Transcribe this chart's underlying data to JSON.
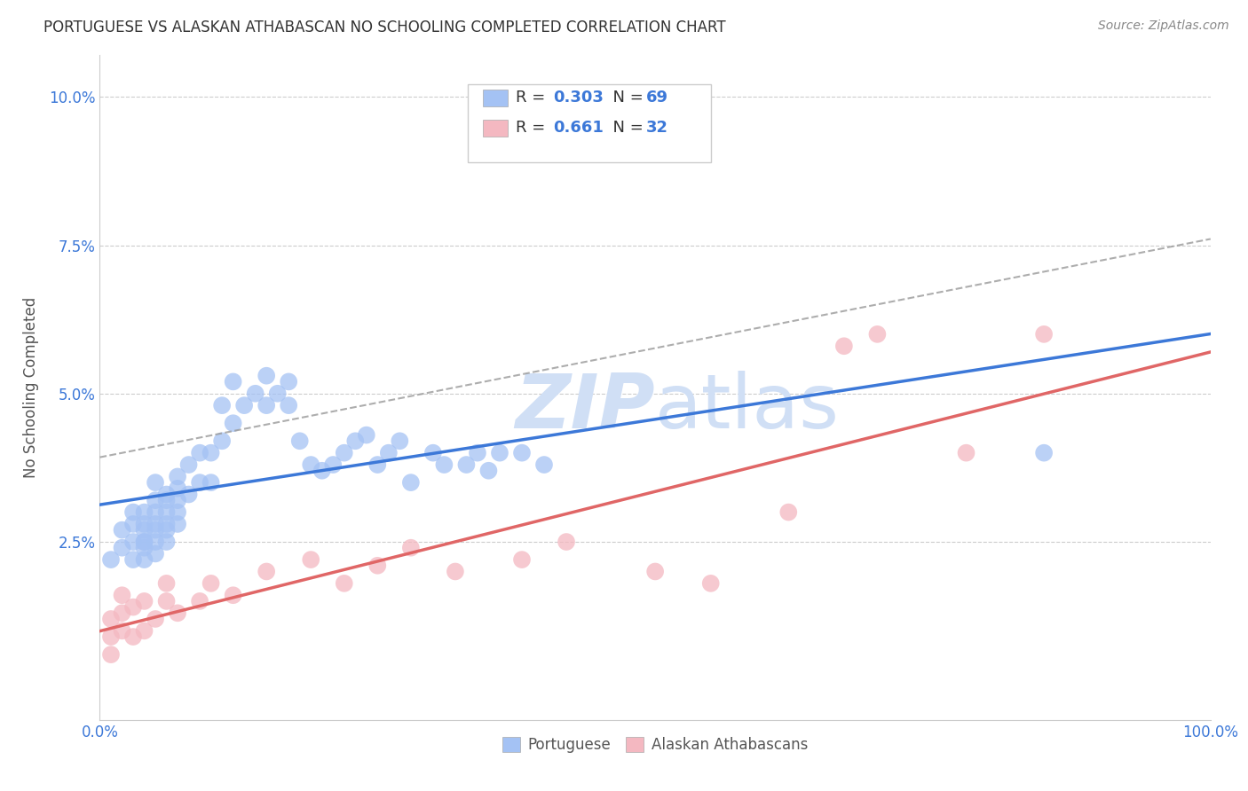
{
  "title": "PORTUGUESE VS ALASKAN ATHABASCAN NO SCHOOLING COMPLETED CORRELATION CHART",
  "source": "Source: ZipAtlas.com",
  "ylabel": "No Schooling Completed",
  "xlim": [
    0.0,
    1.0
  ],
  "ylim": [
    -0.005,
    0.107
  ],
  "xtick_positions": [
    0.0,
    0.25,
    0.5,
    0.75,
    1.0
  ],
  "xtick_labels": [
    "0.0%",
    "",
    "",
    "",
    "100.0%"
  ],
  "ytick_positions": [
    0.025,
    0.05,
    0.075,
    0.1
  ],
  "ytick_labels": [
    "2.5%",
    "5.0%",
    "7.5%",
    "10.0%"
  ],
  "legend1_r": "0.303",
  "legend1_n": "69",
  "legend2_r": "0.661",
  "legend2_n": "32",
  "portuguese_color": "#a4c2f4",
  "athabascan_color": "#f4b8c1",
  "portuguese_line_color": "#3c78d8",
  "athabascan_line_color": "#e06666",
  "legend_text_color": "#3c78d8",
  "watermark_color": "#d0dff5",
  "background_color": "#ffffff",
  "grid_color": "#cccccc",
  "portuguese_x": [
    0.01,
    0.02,
    0.02,
    0.03,
    0.03,
    0.03,
    0.03,
    0.04,
    0.04,
    0.04,
    0.04,
    0.04,
    0.04,
    0.04,
    0.05,
    0.05,
    0.05,
    0.05,
    0.05,
    0.05,
    0.05,
    0.06,
    0.06,
    0.06,
    0.06,
    0.06,
    0.06,
    0.07,
    0.07,
    0.07,
    0.07,
    0.07,
    0.08,
    0.08,
    0.09,
    0.09,
    0.1,
    0.1,
    0.11,
    0.11,
    0.12,
    0.12,
    0.13,
    0.14,
    0.15,
    0.15,
    0.16,
    0.17,
    0.17,
    0.18,
    0.19,
    0.2,
    0.21,
    0.22,
    0.23,
    0.24,
    0.25,
    0.26,
    0.27,
    0.28,
    0.3,
    0.31,
    0.33,
    0.34,
    0.35,
    0.36,
    0.38,
    0.4,
    0.85
  ],
  "portuguese_y": [
    0.022,
    0.024,
    0.027,
    0.022,
    0.025,
    0.028,
    0.03,
    0.022,
    0.024,
    0.025,
    0.025,
    0.027,
    0.028,
    0.03,
    0.023,
    0.025,
    0.027,
    0.028,
    0.03,
    0.032,
    0.035,
    0.025,
    0.027,
    0.028,
    0.03,
    0.032,
    0.033,
    0.028,
    0.03,
    0.032,
    0.034,
    0.036,
    0.033,
    0.038,
    0.035,
    0.04,
    0.035,
    0.04,
    0.042,
    0.048,
    0.045,
    0.052,
    0.048,
    0.05,
    0.048,
    0.053,
    0.05,
    0.052,
    0.048,
    0.042,
    0.038,
    0.037,
    0.038,
    0.04,
    0.042,
    0.043,
    0.038,
    0.04,
    0.042,
    0.035,
    0.04,
    0.038,
    0.038,
    0.04,
    0.037,
    0.04,
    0.04,
    0.038,
    0.04
  ],
  "athabascan_x": [
    0.01,
    0.01,
    0.01,
    0.02,
    0.02,
    0.02,
    0.03,
    0.03,
    0.04,
    0.04,
    0.05,
    0.06,
    0.06,
    0.07,
    0.09,
    0.1,
    0.12,
    0.15,
    0.19,
    0.22,
    0.25,
    0.28,
    0.32,
    0.38,
    0.42,
    0.5,
    0.55,
    0.62,
    0.67,
    0.7,
    0.78,
    0.85
  ],
  "athabascan_y": [
    0.006,
    0.009,
    0.012,
    0.01,
    0.013,
    0.016,
    0.009,
    0.014,
    0.01,
    0.015,
    0.012,
    0.015,
    0.018,
    0.013,
    0.015,
    0.018,
    0.016,
    0.02,
    0.022,
    0.018,
    0.021,
    0.024,
    0.02,
    0.022,
    0.025,
    0.02,
    0.018,
    0.03,
    0.058,
    0.06,
    0.04,
    0.06
  ]
}
